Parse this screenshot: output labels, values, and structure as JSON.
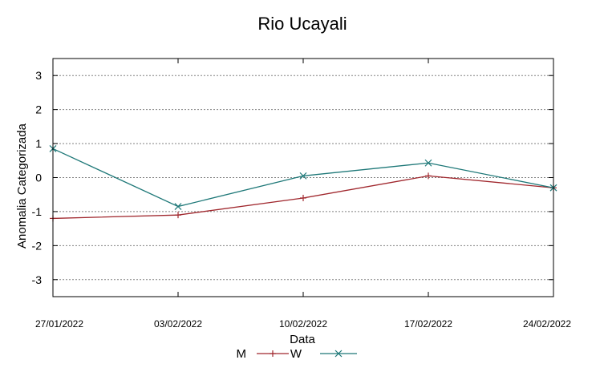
{
  "chart_data": {
    "type": "line",
    "title": "Rio Ucayali",
    "xlabel": "Data",
    "ylabel": "Anomalia Categorizada",
    "categories": [
      "27/01/2022",
      "03/02/2022",
      "10/02/2022",
      "17/02/2022",
      "24/02/2022"
    ],
    "ylim": [
      -3.5,
      3.5
    ],
    "yticks": [
      -3,
      -2,
      -1,
      0,
      1,
      2,
      3
    ],
    "grid": true,
    "legend_position": "bottom",
    "series": [
      {
        "name": "M",
        "color": "#a0272d",
        "marker": "plus",
        "values": [
          -1.2,
          -1.1,
          -0.6,
          0.05,
          -0.3
        ]
      },
      {
        "name": "W",
        "color": "#1e7878",
        "marker": "cross",
        "values": [
          0.85,
          -0.85,
          0.05,
          0.43,
          -0.3
        ]
      }
    ]
  }
}
